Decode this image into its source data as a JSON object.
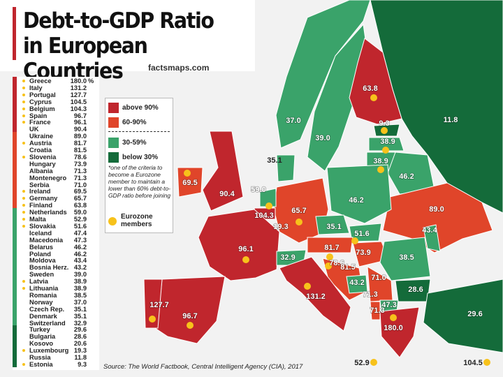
{
  "header": {
    "title_lines": [
      "Debt-to-GDP Ratio",
      "in European Countries"
    ],
    "brand": "factsmaps.com"
  },
  "unit": "%",
  "legend": {
    "items": [
      {
        "label": "above 90%",
        "color": "#c0262d"
      },
      {
        "label": "60-90%",
        "color": "#e0452a"
      },
      {
        "label": "30-59%",
        "color": "#3aa36a"
      },
      {
        "label": "below 30%",
        "color": "#146b3a"
      }
    ],
    "note": "*one of the criteria to become a Eurozone member to maintain a lower than 60% debt-to-GDP ratio before joining",
    "eurozone_label": "Eurozone members",
    "eurozone_color": "#f7c21b"
  },
  "list": [
    [
      {
        "name": "Greece",
        "value": "180.0",
        "eurozone": true
      },
      {
        "name": "Italy",
        "value": "131.2",
        "eurozone": true
      },
      {
        "name": "Portugal",
        "value": "127.7",
        "eurozone": true
      },
      {
        "name": "Cyprus",
        "value": "104.5",
        "eurozone": true
      },
      {
        "name": "Belgium",
        "value": "104.3",
        "eurozone": true
      },
      {
        "name": "Spain",
        "value": "96.7",
        "eurozone": true
      },
      {
        "name": "France",
        "value": "96.1",
        "eurozone": true
      },
      {
        "name": "UK",
        "value": "90.4",
        "eurozone": false
      }
    ],
    [
      {
        "name": "Ukraine",
        "value": "89.0",
        "eurozone": false
      },
      {
        "name": "Austria",
        "value": "81.7",
        "eurozone": true
      },
      {
        "name": "Croatia",
        "value": "81.5",
        "eurozone": false
      },
      {
        "name": "Slovenia",
        "value": "78.6",
        "eurozone": true
      },
      {
        "name": "Hungary",
        "value": "73.9",
        "eurozone": false
      },
      {
        "name": "Albania",
        "value": "71.3",
        "eurozone": false
      },
      {
        "name": "Montenegro",
        "value": "71.3",
        "eurozone": false
      },
      {
        "name": "Serbia",
        "value": "71.0",
        "eurozone": false
      },
      {
        "name": "Ireland",
        "value": "69.5",
        "eurozone": true
      },
      {
        "name": "Germany",
        "value": "65.7",
        "eurozone": true
      },
      {
        "name": "Finland",
        "value": "63.8",
        "eurozone": true
      }
    ],
    [
      {
        "name": "Netherlands",
        "value": "59.0",
        "eurozone": true
      },
      {
        "name": "Malta",
        "value": "52.9",
        "eurozone": true
      },
      {
        "name": "Slovakia",
        "value": "51.6",
        "eurozone": true
      },
      {
        "name": "Iceland",
        "value": "47.4",
        "eurozone": false
      },
      {
        "name": "Macedonia",
        "value": "47.3",
        "eurozone": false
      },
      {
        "name": "Belarus",
        "value": "46.2",
        "eurozone": false
      },
      {
        "name": "Poland",
        "value": "46.2",
        "eurozone": false
      },
      {
        "name": "Moldova",
        "value": "43.4",
        "eurozone": false
      },
      {
        "name": "Bosnia Herz.",
        "value": "43.2",
        "eurozone": false
      },
      {
        "name": "Sweden",
        "value": "39.0",
        "eurozone": false
      },
      {
        "name": "Latvia",
        "value": "38.9",
        "eurozone": true
      },
      {
        "name": "Lithuania",
        "value": "38.9",
        "eurozone": true
      },
      {
        "name": "Romania",
        "value": "38.5",
        "eurozone": false
      },
      {
        "name": "Norway",
        "value": "37.0",
        "eurozone": false
      },
      {
        "name": "Czech Rep.",
        "value": "35.1",
        "eurozone": false
      },
      {
        "name": "Denmark",
        "value": "35.1",
        "eurozone": false
      },
      {
        "name": "Switzerland",
        "value": "32.9",
        "eurozone": false
      }
    ],
    [
      {
        "name": "Turkey",
        "value": "29.6",
        "eurozone": false
      },
      {
        "name": "Bulgaria",
        "value": "28.6",
        "eurozone": false
      },
      {
        "name": "Kosovo",
        "value": "20.6",
        "eurozone": false
      },
      {
        "name": "Luxembourg",
        "value": "19.3",
        "eurozone": true
      },
      {
        "name": "Russia",
        "value": "11.8",
        "eurozone": false
      },
      {
        "name": "Estonia",
        "value": "9.3",
        "eurozone": true
      }
    ]
  ],
  "map_labels": [
    "63.8",
    "11.8",
    "37.0",
    "39.0",
    "9.3",
    "38.9",
    "38.9",
    "46.2",
    "35.1",
    "69.5",
    "90.4",
    "59.0",
    "104.3",
    "19.3",
    "65.7",
    "46.2",
    "89.0",
    "35.1",
    "51.6",
    "43.4",
    "96.1",
    "81.7",
    "73.9",
    "32.9",
    "78.6",
    "81.5",
    "38.5",
    "43.2",
    "71.0",
    "28.6",
    "71.3",
    "71.3",
    "47.3",
    "131.2",
    "127.7",
    "96.7",
    "180.0",
    "29.6",
    "52.9",
    "104.5"
  ],
  "source": "Source: The World Factbook, Central Intelligent Agency (CIA), 2017"
}
